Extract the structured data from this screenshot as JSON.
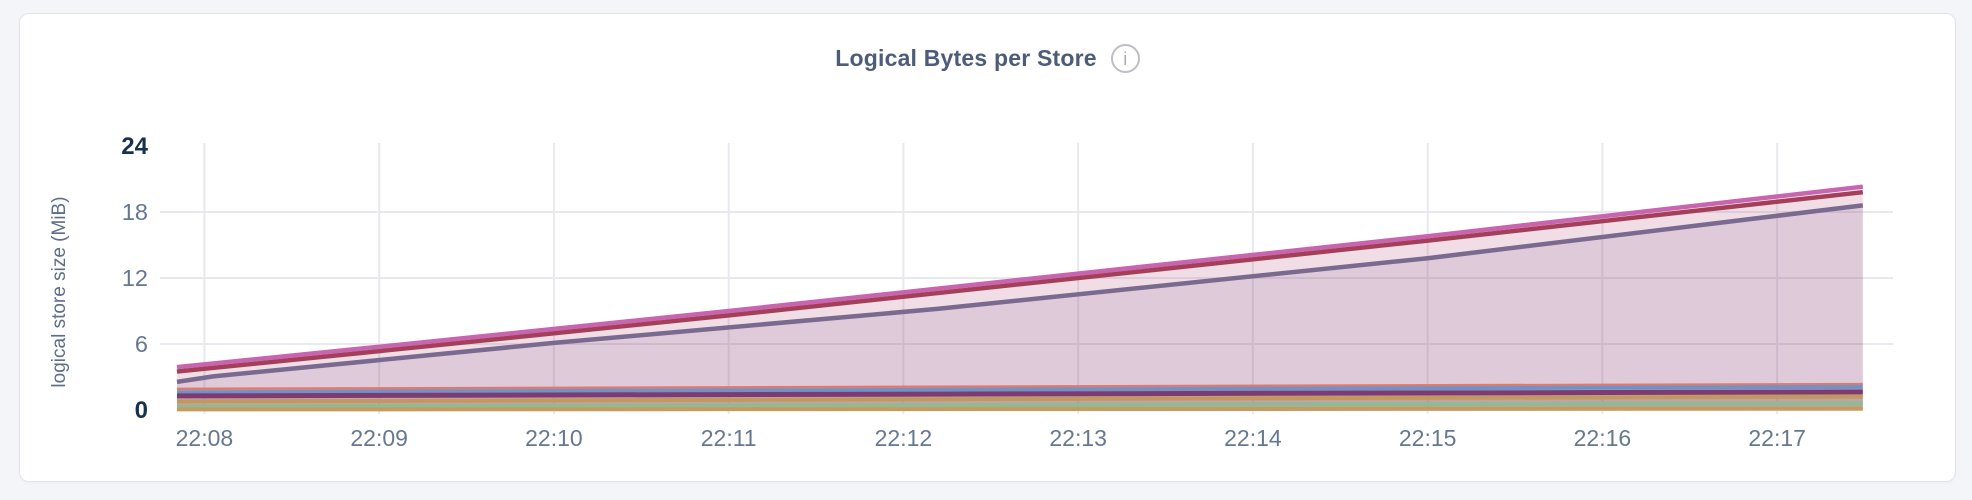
{
  "page": {
    "background": "#f4f5f9"
  },
  "card": {
    "background": "#ffffff",
    "border_color": "#e3e4e8"
  },
  "header": {
    "title": "Logical Bytes per Store",
    "info_icon_glyph": "i"
  },
  "colors": {
    "title": "#4d5c78",
    "axis_title": "#5d6e88",
    "tick_label": "#66788f",
    "tick_label_emphasized": "#16324e",
    "gridline": "#e8e9ee",
    "info_icon": "#bcbfc5"
  },
  "chart_data": {
    "type": "area",
    "title": "Logical Bytes per Store",
    "xlabel": "",
    "ylabel": "logical store size (MiB)",
    "ylim": [
      0,
      24
    ],
    "y_ticks": [
      0,
      6,
      12,
      18,
      24
    ],
    "y_ticks_emphasized": [
      0,
      24
    ],
    "x_tick_labels": [
      "22:08",
      "22:09",
      "22:10",
      "22:11",
      "22:12",
      "22:13",
      "22:14",
      "22:15",
      "22:16",
      "22:17"
    ],
    "x_tick_minutes": [
      0,
      1,
      2,
      3,
      4,
      5,
      6,
      7,
      8,
      9
    ],
    "x_domain_minutes": [
      -0.157,
      9.663
    ],
    "data_end_minute": 9.49,
    "grid": true,
    "legend_position": "none",
    "series": [
      {
        "id": "series-slate",
        "color": "#6e7193",
        "stroke_width": 4.5,
        "fill_opacity": 0.16,
        "points": [
          [
            -0.157,
            2.55
          ],
          [
            0.05,
            3.05
          ],
          [
            2.0,
            6.1
          ],
          [
            4.2,
            9.2
          ],
          [
            7.0,
            13.8
          ],
          [
            9.49,
            18.6
          ]
        ]
      },
      {
        "id": "series-darkred",
        "color": "#a23b50",
        "stroke_width": 4.5,
        "fill_opacity": 0.1,
        "points": [
          [
            -0.157,
            3.5
          ],
          [
            1.0,
            5.35
          ],
          [
            3.0,
            8.6
          ],
          [
            5.0,
            12.0
          ],
          [
            7.0,
            15.4
          ],
          [
            9.49,
            19.8
          ]
        ]
      },
      {
        "id": "series-orchid",
        "color": "#c765ae",
        "stroke_width": 4.5,
        "fill_opacity": 0.1,
        "points": [
          [
            -0.157,
            3.9
          ],
          [
            1.0,
            5.75
          ],
          [
            3.0,
            9.0
          ],
          [
            5.0,
            12.4
          ],
          [
            7.0,
            15.8
          ],
          [
            9.49,
            20.3
          ]
        ]
      },
      {
        "id": "series-salmon",
        "color": "#e07a70",
        "stroke_width": 2.5,
        "fill_opacity": 0.15,
        "points": [
          [
            -0.157,
            1.92
          ],
          [
            9.49,
            2.35
          ]
        ]
      },
      {
        "id": "series-blue",
        "color": "#7093c5",
        "stroke_width": 4,
        "fill_opacity": 0.15,
        "points": [
          [
            -0.157,
            1.62
          ],
          [
            9.49,
            2.1
          ]
        ]
      },
      {
        "id": "series-magenta",
        "color": "#7d3b71",
        "stroke_width": 5,
        "fill_opacity": 0.15,
        "points": [
          [
            -0.157,
            1.28
          ],
          [
            9.49,
            1.65
          ]
        ]
      },
      {
        "id": "series-gold-1",
        "color": "#c2995a",
        "stroke_width": 4,
        "fill_opacity": 0.15,
        "points": [
          [
            -0.157,
            0.78
          ],
          [
            9.49,
            1.22
          ]
        ]
      },
      {
        "id": "series-green",
        "color": "#8fba92",
        "stroke_width": 4,
        "fill_opacity": 0.15,
        "points": [
          [
            -0.157,
            0.3
          ],
          [
            9.49,
            0.62
          ]
        ]
      },
      {
        "id": "series-gold-2",
        "color": "#c69c5e",
        "stroke_width": 4,
        "fill_opacity": 0.15,
        "points": [
          [
            -0.157,
            0.05
          ],
          [
            9.49,
            0.12
          ]
        ]
      }
    ]
  }
}
